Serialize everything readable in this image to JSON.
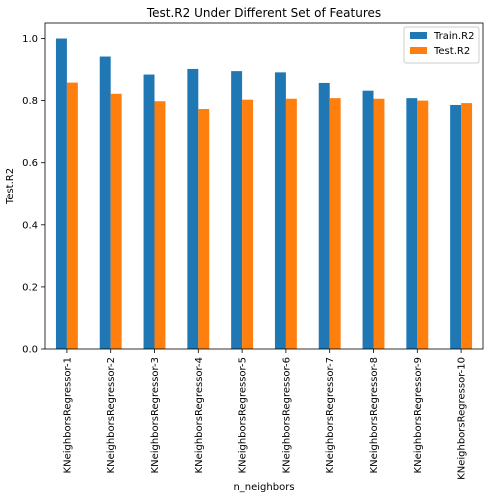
{
  "chart_data": {
    "type": "bar",
    "title": "Test.R2 Under Different Set of Features",
    "xlabel": "n_neighbors",
    "ylabel": "Test.R2",
    "categories": [
      "KNeighborsRegressor-1",
      "KNeighborsRegressor-2",
      "KNeighborsRegressor-3",
      "KNeighborsRegressor-4",
      "KNeighborsRegressor-5",
      "KNeighborsRegressor-6",
      "KNeighborsRegressor-7",
      "KNeighborsRegressor-8",
      "KNeighborsRegressor-9",
      "KNeighborsRegressor-10"
    ],
    "series": [
      {
        "name": "Train.R2",
        "color": "#1f77b4",
        "values": [
          1.0,
          0.942,
          0.884,
          0.902,
          0.895,
          0.891,
          0.857,
          0.832,
          0.808,
          0.786
        ]
      },
      {
        "name": "Test.R2",
        "color": "#ff7f0e",
        "values": [
          0.858,
          0.822,
          0.798,
          0.773,
          0.803,
          0.806,
          0.808,
          0.806,
          0.8,
          0.792
        ]
      }
    ],
    "ylim": [
      0,
      1.05
    ],
    "yticks": [
      "0.0",
      "0.2",
      "0.4",
      "0.6",
      "0.8",
      "1.0"
    ],
    "grid": false,
    "legend_position": "top-right"
  }
}
